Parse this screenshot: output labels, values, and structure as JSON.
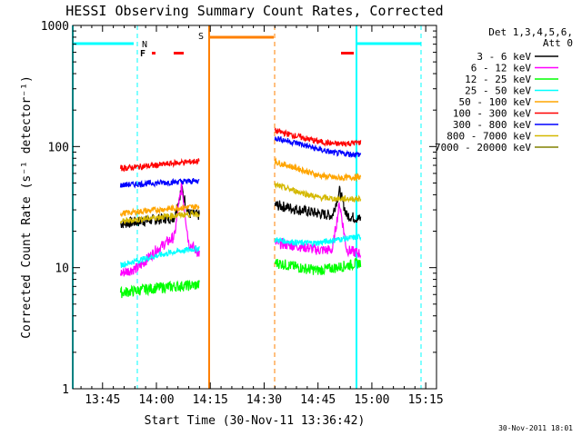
{
  "chart_data": {
    "type": "line",
    "title": "HESSI Observing Summary Count Rates, Corrected",
    "xlabel": "Start Time (30-Nov-11 13:36:42)",
    "ylabel": "Corrected Count Rate (s⁻¹ detector⁻¹)",
    "yscale": "log",
    "xlim": [
      "13:36:42",
      "15:18:00"
    ],
    "ylim": [
      1,
      1000
    ],
    "x_ticks": [
      "13:45",
      "14:00",
      "14:15",
      "14:30",
      "14:45",
      "15:00",
      "15:15"
    ],
    "y_ticks": [
      "1",
      "10",
      "100",
      "1000"
    ],
    "legend": {
      "placement": "right-outside",
      "header_lines": [
        "Det 1,3,4,5,6,",
        "Att 0"
      ]
    },
    "series": [
      {
        "name": "3 - 6 keV",
        "color": "#000000",
        "x": [
          "13:50",
          "13:55",
          "14:00",
          "14:05",
          "14:07",
          "14:09",
          "14:12",
          "14:33",
          "14:40",
          "14:45",
          "14:49",
          "14:51",
          "14:53",
          "14:57"
        ],
        "y": [
          23,
          24,
          25,
          26,
          45,
          28,
          27,
          33,
          30,
          28,
          27,
          43,
          27,
          25
        ]
      },
      {
        "name": "6 - 12 keV",
        "color": "#ff00ff",
        "x": [
          "13:50",
          "13:55",
          "14:00",
          "14:05",
          "14:07",
          "14:09",
          "14:12",
          "14:33",
          "14:40",
          "14:45",
          "14:49",
          "14:51",
          "14:53",
          "14:57"
        ],
        "y": [
          9,
          10,
          14,
          18,
          48,
          16,
          13,
          16,
          15,
          14,
          14,
          34,
          14,
          13
        ]
      },
      {
        "name": "12 - 25 keV",
        "color": "#00ff00",
        "x": [
          "13:50",
          "13:55",
          "14:00",
          "14:05",
          "14:12",
          "14:33",
          "14:40",
          "14:45",
          "14:50",
          "14:57"
        ],
        "y": [
          6.2,
          6.5,
          6.8,
          7.0,
          7.2,
          11,
          10,
          9.5,
          10,
          11
        ]
      },
      {
        "name": "25 - 50 keV",
        "color": "#00ffff",
        "x": [
          "13:50",
          "13:55",
          "14:00",
          "14:05",
          "14:12",
          "14:33",
          "14:40",
          "14:45",
          "14:50",
          "14:57"
        ],
        "y": [
          10.5,
          11.5,
          12.5,
          13.5,
          14.5,
          17,
          16,
          16,
          17,
          18
        ]
      },
      {
        "name": "50 - 100 keV",
        "color": "#ffa500",
        "x": [
          "13:50",
          "13:55",
          "14:00",
          "14:05",
          "14:12",
          "14:33",
          "14:40",
          "14:45",
          "14:50",
          "14:57"
        ],
        "y": [
          28,
          29,
          30,
          31,
          32,
          75,
          65,
          58,
          55,
          56
        ]
      },
      {
        "name": "100 - 300 keV",
        "color": "#ff0000",
        "x": [
          "13:50",
          "13:55",
          "14:00",
          "14:05",
          "14:12",
          "14:33",
          "14:40",
          "14:45",
          "14:50",
          "14:57"
        ],
        "y": [
          66,
          68,
          70,
          73,
          76,
          135,
          120,
          110,
          105,
          108
        ]
      },
      {
        "name": "300 - 800 keV",
        "color": "#0000ff",
        "x": [
          "13:50",
          "13:55",
          "14:00",
          "14:05",
          "14:12",
          "14:33",
          "14:40",
          "14:45",
          "14:50",
          "14:57"
        ],
        "y": [
          48,
          49,
          50,
          51,
          52,
          118,
          105,
          95,
          88,
          86
        ]
      },
      {
        "name": "800 - 7000 keV",
        "color": "#d4b800",
        "x": [
          "13:50",
          "13:55",
          "14:00",
          "14:05",
          "14:12",
          "14:33",
          "14:40",
          "14:45",
          "14:50",
          "14:57"
        ],
        "y": [
          24,
          25,
          26,
          27,
          28,
          48,
          42,
          38,
          37,
          37
        ]
      },
      {
        "name": "7000 - 20000 keV",
        "color": "#808000",
        "x": [
          "13:50",
          "14:12",
          "14:33",
          "14:57"
        ],
        "y": [
          null,
          null,
          null,
          null
        ]
      }
    ],
    "annotations": [
      {
        "label": "N",
        "color": "#00ffff"
      },
      {
        "label": "F",
        "color": "#ff0000"
      },
      {
        "label": "S",
        "color": "#ff8000"
      }
    ],
    "footer_date": "30-Nov-2011 18:01"
  }
}
